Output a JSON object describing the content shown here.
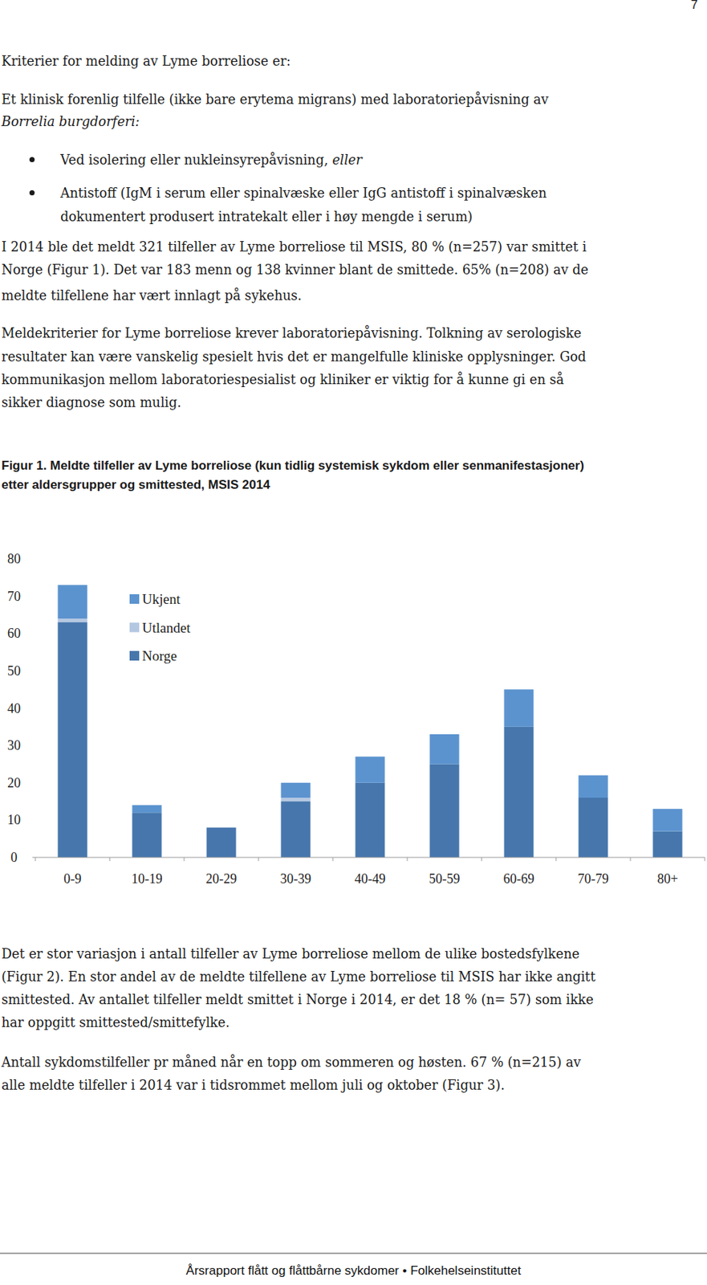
{
  "page_number": "7",
  "lines_top": [
    {
      "runs": [
        {
          "text": "Kriterier for melding av Lyme borreliose er:",
          "italic": false
        }
      ]
    },
    {
      "runs": [
        {
          "text": "Et klinisk forenlig tilfelle (ikke bare erytema migrans) med laboratoriepåvisning av",
          "italic": false
        }
      ]
    },
    {
      "runs": [
        {
          "text": "Borrelia burgdorferi:",
          "italic": true
        }
      ]
    },
    {
      "bullet": true,
      "runs": [
        {
          "text": "Ved isolering eller nukleinsyrepåvisning, ",
          "italic": false
        },
        {
          "text": "eller",
          "italic": true
        }
      ]
    },
    {
      "bullet": true,
      "runs": [
        {
          "text": "Antistoff (IgM i serum eller spinalvæske eller IgG antistoff i spinalvæsken",
          "italic": false
        }
      ]
    },
    {
      "indent": true,
      "runs": [
        {
          "text": "dokumentert produsert intratekalt eller i høy mengde i serum)",
          "italic": false
        }
      ]
    },
    {
      "runs": [
        {
          "text": "I 2014 ble det meldt 321 tilfeller av Lyme borreliose til MSIS, 80 % (n=257) var smittet i",
          "italic": false
        }
      ]
    },
    {
      "runs": [
        {
          "text": "Norge (Figur 1). Det var 183 menn og 138 kvinner blant de smittede. 65% (n=208) av de",
          "italic": false
        }
      ]
    },
    {
      "runs": [
        {
          "text": "meldte tilfellene har vært innlagt på sykehus.",
          "italic": false
        }
      ]
    },
    {
      "runs": [
        {
          "text": "Meldekriterier for Lyme borreliose krever laboratoriepåvisning. Tolkning av serologiske",
          "italic": false
        }
      ]
    },
    {
      "runs": [
        {
          "text": "resultater kan være vanskelig spesielt hvis det er mangelfulle kliniske opplysninger. God",
          "italic": false
        }
      ]
    },
    {
      "runs": [
        {
          "text": "kommunikasjon mellom laboratoriespesialist og kliniker er viktig for å kunne gi en så",
          "italic": false
        }
      ]
    },
    {
      "runs": [
        {
          "text": "sikker diagnose som mulig.",
          "italic": false
        }
      ]
    }
  ],
  "figure_caption": [
    "Figur 1. Meldte tilfeller av Lyme borreliose (kun tidlig systemisk sykdom eller senmanifestasjoner)",
    "etter aldersgrupper og smittested, MSIS 2014"
  ],
  "chart_data": {
    "type": "bar",
    "stacked": true,
    "legend": "top-left",
    "grid": false,
    "categories": [
      "0-9",
      "10-19",
      "20-29",
      "30-39",
      "40-49",
      "50-59",
      "60-69",
      "70-79",
      "80+"
    ],
    "series": [
      {
        "name": "Norge",
        "color": "#4676ac",
        "values": [
          63,
          12,
          8,
          15,
          20,
          25,
          35,
          16,
          7
        ]
      },
      {
        "name": "Utlandet",
        "color": "#b4c7e1",
        "values": [
          1,
          0,
          0,
          1,
          0,
          0,
          0,
          0,
          0
        ]
      },
      {
        "name": "Ukjent",
        "color": "#5b93cf",
        "values": [
          9,
          2,
          0,
          4,
          7,
          8,
          10,
          6,
          6
        ]
      }
    ],
    "ylim": [
      0,
      80
    ],
    "yticks": [
      0,
      10,
      20,
      30,
      40,
      50,
      60,
      70,
      80
    ]
  },
  "lines_bottom": [
    {
      "runs": [
        {
          "text": "Det er stor variasjon i antall tilfeller av Lyme borreliose mellom de ulike bostedsfylkene",
          "italic": false
        }
      ]
    },
    {
      "runs": [
        {
          "text": "(Figur 2). En stor andel av de meldte tilfellene av Lyme borreliose til MSIS har ikke angitt",
          "italic": false
        }
      ]
    },
    {
      "runs": [
        {
          "text": "smittested. Av antallet tilfeller meldt smittet i Norge i 2014, er det 18 % (n= 57) som ikke",
          "italic": false
        }
      ]
    },
    {
      "runs": [
        {
          "text": "har oppgitt smittested/smittefylke.",
          "italic": false
        }
      ]
    },
    {
      "runs": [
        {
          "text": "Antall sykdomstilfeller pr måned når en topp om sommeren og høsten. 67 % (n=215) av",
          "italic": false
        }
      ]
    },
    {
      "runs": [
        {
          "text": "alle meldte tilfeller i 2014 var i tidsrommet mellom juli og oktober (Figur 3).",
          "italic": false
        }
      ]
    }
  ],
  "footer": "Årsrapport flått og flåttbårne sykdomer • Folkehelseinstituttet"
}
